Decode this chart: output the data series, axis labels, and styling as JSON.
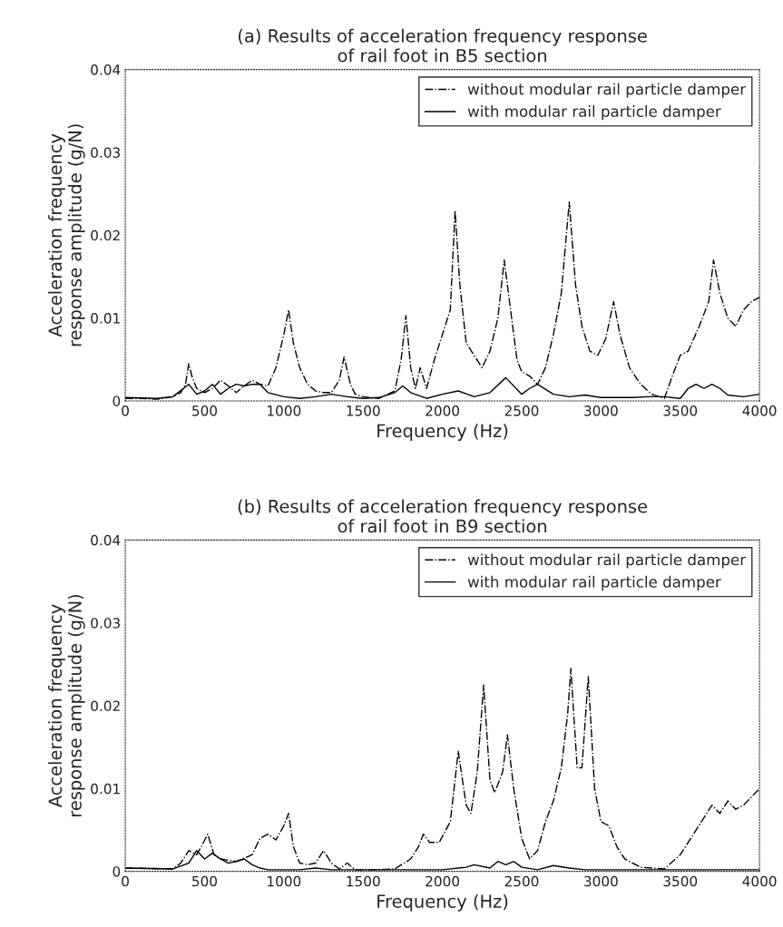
{
  "chart_data": [
    {
      "type": "line",
      "title": "(a) Results of acceleration frequency response\nof rail foot in B5 section",
      "xlabel": "Frequency (Hz)",
      "ylabel": "Acceleration frequency\nresponse amplitude (g/N)",
      "xlim": [
        0,
        4000
      ],
      "ylim": [
        0,
        0.04
      ],
      "xticks": [
        0,
        500,
        1000,
        1500,
        2000,
        2500,
        3000,
        3500,
        4000
      ],
      "yticks": [
        0,
        0.01,
        0.02,
        0.03,
        0.04
      ],
      "legend": "top right",
      "series": [
        {
          "name": "without modular rail particle damper",
          "color": "#000000",
          "line_style": "dashed",
          "x": [
            0,
            100,
            200,
            300,
            350,
            380,
            400,
            420,
            450,
            500,
            550,
            600,
            650,
            700,
            750,
            800,
            850,
            900,
            950,
            1000,
            1030,
            1060,
            1100,
            1150,
            1200,
            1250,
            1300,
            1350,
            1380,
            1420,
            1450,
            1500,
            1600,
            1700,
            1740,
            1770,
            1800,
            1830,
            1860,
            1900,
            1950,
            2000,
            2050,
            2080,
            2110,
            2150,
            2200,
            2250,
            2300,
            2350,
            2390,
            2430,
            2470,
            2500,
            2550,
            2600,
            2650,
            2700,
            2750,
            2800,
            2840,
            2880,
            2930,
            2980,
            3030,
            3080,
            3120,
            3180,
            3250,
            3320,
            3400,
            3450,
            3500,
            3550,
            3620,
            3680,
            3710,
            3750,
            3800,
            3850,
            3900,
            3950,
            4000
          ],
          "values": [
            0.0003,
            0.0003,
            0.0002,
            0.0005,
            0.001,
            0.002,
            0.0045,
            0.003,
            0.0015,
            0.001,
            0.0015,
            0.0025,
            0.0018,
            0.001,
            0.0018,
            0.0025,
            0.002,
            0.0018,
            0.004,
            0.008,
            0.011,
            0.007,
            0.004,
            0.002,
            0.0012,
            0.001,
            0.001,
            0.0025,
            0.0053,
            0.002,
            0.0008,
            0.0005,
            0.0003,
            0.0012,
            0.005,
            0.0103,
            0.004,
            0.0015,
            0.004,
            0.0015,
            0.005,
            0.008,
            0.011,
            0.023,
            0.014,
            0.007,
            0.0055,
            0.004,
            0.006,
            0.01,
            0.017,
            0.011,
            0.005,
            0.0035,
            0.003,
            0.002,
            0.004,
            0.008,
            0.013,
            0.024,
            0.014,
            0.009,
            0.006,
            0.0055,
            0.0075,
            0.012,
            0.008,
            0.004,
            0.002,
            0.0008,
            0.0003,
            0.003,
            0.0055,
            0.006,
            0.009,
            0.012,
            0.017,
            0.013,
            0.01,
            0.009,
            0.011,
            0.012,
            0.0125
          ]
        },
        {
          "name": "with modular rail particle damper",
          "color": "#000000",
          "line_style": "solid",
          "x": [
            0,
            200,
            300,
            400,
            450,
            500,
            550,
            600,
            650,
            700,
            750,
            800,
            850,
            900,
            1000,
            1100,
            1200,
            1300,
            1400,
            1500,
            1600,
            1700,
            1750,
            1800,
            1900,
            2000,
            2100,
            2200,
            2300,
            2400,
            2500,
            2550,
            2600,
            2700,
            2800,
            2900,
            3000,
            3200,
            3300,
            3400,
            3500,
            3550,
            3600,
            3650,
            3700,
            3750,
            3800,
            3900,
            4000
          ],
          "values": [
            0.0004,
            0.0003,
            0.0005,
            0.002,
            0.0008,
            0.0012,
            0.002,
            0.0008,
            0.0015,
            0.002,
            0.0018,
            0.002,
            0.002,
            0.001,
            0.0005,
            0.0003,
            0.0005,
            0.0008,
            0.0005,
            0.0003,
            0.0004,
            0.001,
            0.0018,
            0.001,
            0.0003,
            0.0008,
            0.0012,
            0.0005,
            0.001,
            0.0028,
            0.0008,
            0.0015,
            0.002,
            0.0008,
            0.0005,
            0.0007,
            0.0004,
            0.0004,
            0.0005,
            0.0005,
            0.0003,
            0.0015,
            0.002,
            0.0015,
            0.002,
            0.0015,
            0.0007,
            0.0005,
            0.0008
          ]
        }
      ]
    },
    {
      "type": "line",
      "title": "(b) Results of acceleration frequency response\nof rail foot in B9 section",
      "xlabel": "Frequency (Hz)",
      "ylabel": "Acceleration frequency\nresponse amplitude (g/N)",
      "xlim": [
        0,
        4000
      ],
      "ylim": [
        0,
        0.04
      ],
      "xticks": [
        0,
        500,
        1000,
        1500,
        2000,
        2500,
        3000,
        3500,
        4000
      ],
      "yticks": [
        0,
        0.01,
        0.02,
        0.03,
        0.04
      ],
      "legend": "top right",
      "series": [
        {
          "name": "without modular rail particle damper",
          "color": "#000000",
          "line_style": "dashed",
          "x": [
            0,
            300,
            350,
            400,
            450,
            480,
            520,
            560,
            600,
            700,
            800,
            850,
            900,
            950,
            1000,
            1030,
            1060,
            1100,
            1150,
            1200,
            1250,
            1300,
            1350,
            1400,
            1450,
            1600,
            1700,
            1800,
            1850,
            1880,
            1920,
            1980,
            2050,
            2100,
            2150,
            2180,
            2220,
            2260,
            2300,
            2330,
            2380,
            2410,
            2450,
            2500,
            2550,
            2600,
            2650,
            2700,
            2750,
            2790,
            2810,
            2850,
            2880,
            2920,
            2960,
            3000,
            3050,
            3100,
            3150,
            3250,
            3400,
            3500,
            3600,
            3700,
            3750,
            3800,
            3850,
            3900,
            4000
          ],
          "values": [
            0.0004,
            0.0003,
            0.001,
            0.0025,
            0.002,
            0.003,
            0.0045,
            0.002,
            0.0015,
            0.0012,
            0.002,
            0.004,
            0.0045,
            0.0038,
            0.0055,
            0.007,
            0.003,
            0.001,
            0.0008,
            0.001,
            0.0025,
            0.001,
            0.0003,
            0.001,
            0.0002,
            0.0002,
            0.0003,
            0.0015,
            0.003,
            0.0045,
            0.0035,
            0.0035,
            0.006,
            0.0145,
            0.008,
            0.007,
            0.012,
            0.0225,
            0.011,
            0.0095,
            0.012,
            0.0165,
            0.01,
            0.004,
            0.0015,
            0.0025,
            0.006,
            0.0085,
            0.0125,
            0.019,
            0.0245,
            0.0125,
            0.0125,
            0.0235,
            0.01,
            0.006,
            0.0055,
            0.003,
            0.0015,
            0.0005,
            0.0003,
            0.002,
            0.005,
            0.008,
            0.007,
            0.0085,
            0.0075,
            0.008,
            0.01
          ]
        },
        {
          "name": "with modular rail particle damper",
          "color": "#000000",
          "line_style": "solid",
          "x": [
            0,
            300,
            400,
            450,
            500,
            550,
            600,
            650,
            700,
            750,
            800,
            850,
            900,
            1100,
            1200,
            1300,
            1500,
            1700,
            2000,
            2150,
            2200,
            2300,
            2350,
            2400,
            2450,
            2500,
            2600,
            2700,
            2800,
            2900,
            3500,
            4000
          ],
          "values": [
            0.0004,
            0.0003,
            0.001,
            0.0025,
            0.0015,
            0.0022,
            0.0015,
            0.001,
            0.0012,
            0.0015,
            0.0008,
            0.0004,
            0.0002,
            0.0002,
            0.0004,
            0.0002,
            0.0002,
            0.0002,
            0.0002,
            0.0005,
            0.0008,
            0.0004,
            0.0012,
            0.0008,
            0.0012,
            0.0005,
            0.0002,
            0.0007,
            0.0004,
            0.0002,
            0.0002,
            0.0002
          ]
        }
      ]
    }
  ]
}
